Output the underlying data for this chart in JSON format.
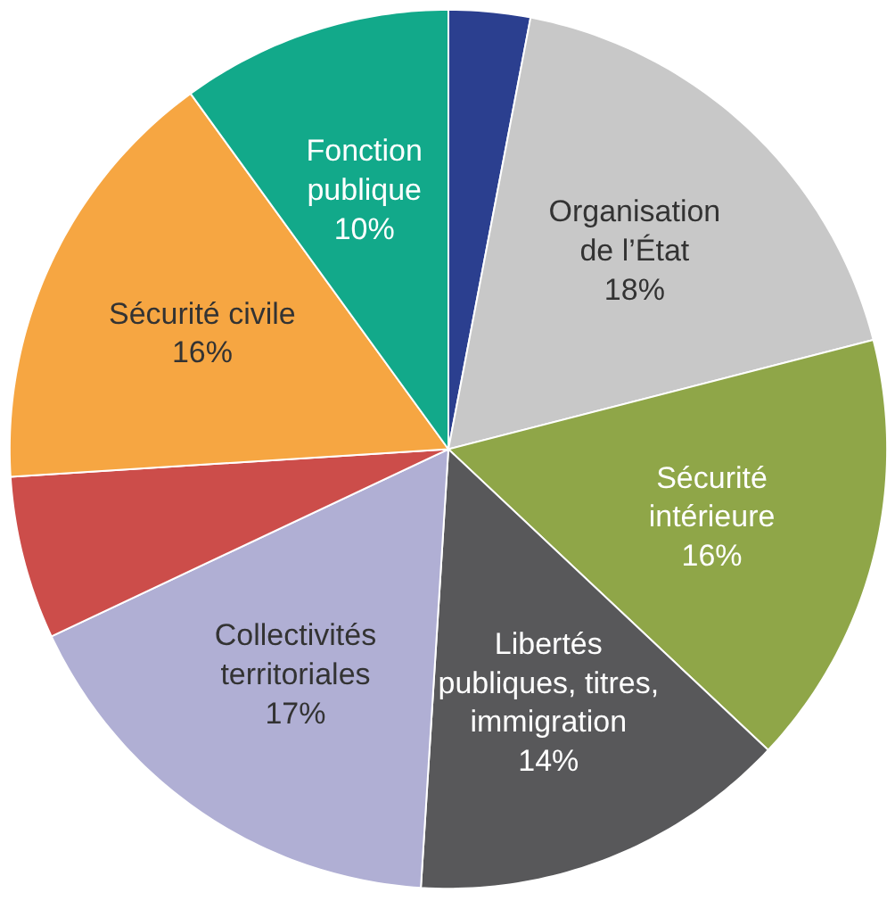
{
  "chart_data": {
    "type": "pie",
    "categories": [
      null,
      "Organisation\nde l’État",
      "Sécurité\nintérieure",
      "Libertés\npubliques, titres,\nimmigration",
      "Collectivités\nterritoriales",
      null,
      "Sécurité civile",
      "Fonction\npublique"
    ],
    "values": [
      3,
      18,
      16,
      14,
      17,
      6,
      16,
      10
    ],
    "value_labels": [
      null,
      "18%",
      "16%",
      "14%",
      "17%",
      null,
      "16%",
      "10%"
    ],
    "colors": [
      "#2b3f8f",
      "#c8c8c8",
      "#8fa648",
      "#58585a",
      "#b0afd4",
      "#cc4d4a",
      "#f6a642",
      "#12a98a"
    ]
  }
}
